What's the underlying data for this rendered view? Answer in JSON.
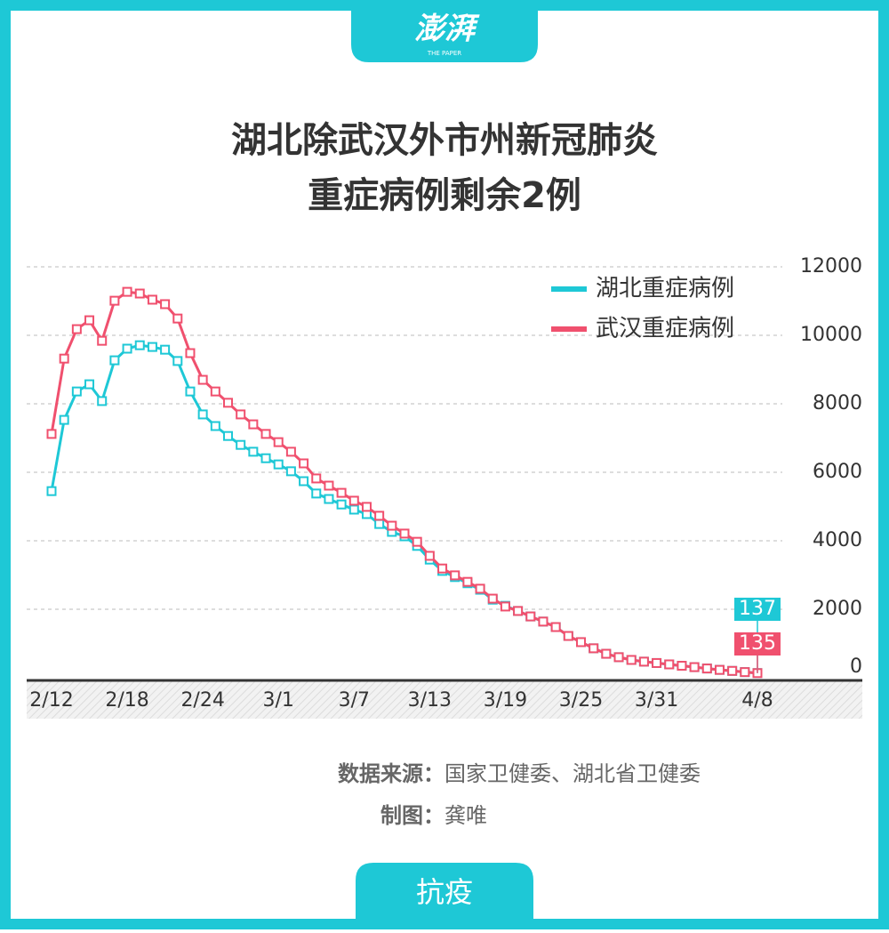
{
  "brand": {
    "name": "澎湃",
    "sub": "THE PAPER"
  },
  "chart_data": {
    "type": "line",
    "title": [
      "湖北除武汉外市州新冠肺炎",
      "重症病例剩余2例"
    ],
    "categories": [
      "2/12",
      null,
      null,
      null,
      null,
      null,
      "2/18",
      null,
      null,
      null,
      null,
      null,
      "2/24",
      null,
      null,
      null,
      null,
      null,
      "3/1",
      null,
      null,
      null,
      null,
      null,
      "3/7",
      null,
      null,
      null,
      null,
      null,
      "3/13",
      null,
      null,
      null,
      null,
      null,
      "3/19",
      null,
      null,
      null,
      null,
      null,
      "3/25",
      null,
      null,
      null,
      null,
      null,
      "3/31",
      null,
      null,
      null,
      null,
      null,
      null,
      null,
      "4/8"
    ],
    "series": [
      {
        "name": "湖北重症病例",
        "color": "#1ec8d6",
        "values": [
          5450,
          7530,
          8360,
          8570,
          8080,
          9270,
          9610,
          9710,
          9660,
          9580,
          9250,
          8360,
          7690,
          7350,
          7060,
          6800,
          6600,
          6410,
          6230,
          6030,
          5740,
          5380,
          5220,
          5060,
          4910,
          4780,
          4490,
          4260,
          4130,
          3850,
          3450,
          3120,
          2940,
          2760,
          2570,
          2280,
          2100,
          1950,
          1790,
          1640,
          1480,
          1220,
          1040,
          860,
          700,
          600,
          520,
          470,
          430,
          390,
          350,
          310,
          270,
          230,
          200,
          165,
          137
        ]
      },
      {
        "name": "武汉重症病例",
        "color": "#f0506e",
        "values": [
          7120,
          9320,
          10180,
          10440,
          9840,
          11010,
          11270,
          11220,
          11040,
          10910,
          10490,
          9480,
          8700,
          8360,
          8030,
          7690,
          7400,
          7120,
          6880,
          6600,
          6260,
          5820,
          5610,
          5400,
          5170,
          4990,
          4730,
          4440,
          4210,
          3970,
          3560,
          3190,
          2990,
          2800,
          2600,
          2310,
          2080,
          1950,
          1790,
          1640,
          1480,
          1220,
          1040,
          860,
          700,
          600,
          520,
          470,
          430,
          390,
          350,
          310,
          270,
          230,
          200,
          165,
          135
        ]
      }
    ],
    "ylim": [
      0,
      12000
    ],
    "yticks": [
      0,
      2000,
      4000,
      6000,
      8000,
      10000,
      12000
    ],
    "grid": true
  },
  "footer": {
    "source_label": "数据来源：",
    "source": "国家卫健委、湖北省卫健委",
    "author_label": "制图：",
    "author": "龚唯",
    "tag": "抗疫"
  }
}
